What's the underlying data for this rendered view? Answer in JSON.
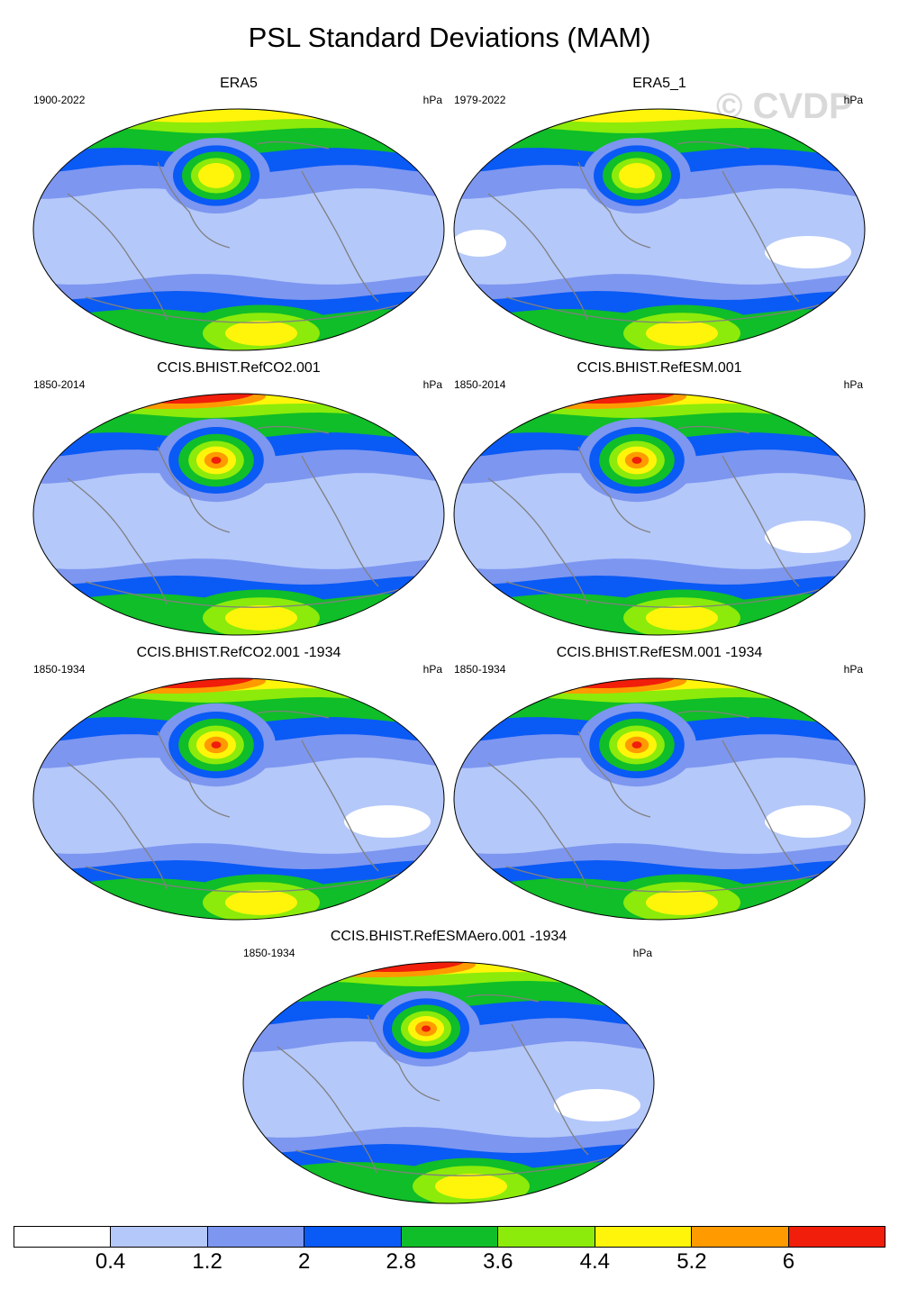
{
  "figure": {
    "title": "PSL Standard Deviations (MAM)",
    "watermark": "© CVDP"
  },
  "panels": [
    {
      "title": "ERA5",
      "years": "1900-2022",
      "units": "hPa"
    },
    {
      "title": "ERA5_1",
      "years": "1979-2022",
      "units": "hPa"
    },
    {
      "title": "CCIS.BHIST.RefCO2.001",
      "years": "1850-2014",
      "units": "hPa"
    },
    {
      "title": "CCIS.BHIST.RefESM.001",
      "years": "1850-2014",
      "units": "hPa"
    },
    {
      "title": "CCIS.BHIST.RefCO2.001 -1934",
      "years": "1850-1934",
      "units": "hPa"
    },
    {
      "title": "CCIS.BHIST.RefESM.001 -1934",
      "years": "1850-1934",
      "units": "hPa"
    },
    {
      "title": "CCIS.BHIST.RefESMAero.001 -1934",
      "years": "1850-1934",
      "units": "hPa"
    }
  ],
  "legend": {
    "colors": [
      "#ffffff",
      "#b4c8fa",
      "#7d96f0",
      "#0a5af5",
      "#0fbe28",
      "#8ceb0a",
      "#fff50a",
      "#ff9b00",
      "#f01e0a"
    ],
    "labels": [
      "0.4",
      "1.2",
      "2",
      "2.8",
      "3.6",
      "4.4",
      "5.2",
      "6"
    ]
  },
  "colors": {
    "coastline": "#808080"
  }
}
